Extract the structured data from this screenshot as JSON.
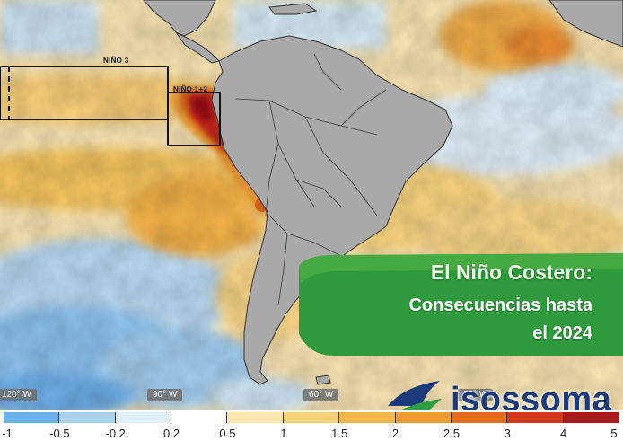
{
  "map": {
    "regions": [
      {
        "label": "NIÑO 3"
      },
      {
        "label": "NIÑO 1+2"
      }
    ],
    "longitude_labels": [
      "120° W",
      "90° W",
      "60° W",
      "30° W"
    ],
    "colors": {
      "land": "#a9a9a9",
      "coast": "#333333",
      "ocean_neutral": "#fdf3d7",
      "anomaly_scale": [
        "#3a8ee6",
        "#8ec5f2",
        "#cfe6f7",
        "#eef6fb",
        "#fdf1c9",
        "#fbd980",
        "#f7be4a",
        "#f0a030",
        "#e8701c",
        "#d33a1a",
        "#a8141a",
        "#6e0a10"
      ]
    }
  },
  "colorbar": {
    "ticks": [
      "-1",
      "-0.5",
      "-0.2",
      "0.2",
      "0.5",
      "1",
      "1.5",
      "2",
      "2.5",
      "3",
      "4",
      "5"
    ],
    "segment_colors": [
      "#6cb0ec",
      "#a8d2f4",
      "#e2f0f9",
      "#ffffff",
      "#fde9b0",
      "#fbd27a",
      "#f7b54a",
      "#f29a32",
      "#e56c1e",
      "#d1391a",
      "#a91a18"
    ]
  },
  "headline": {
    "line1": "El Niño Costero:",
    "line2": "Consecuencias hasta",
    "line3": "el 2024",
    "banner_color": "#2e9a3c"
  },
  "brand": {
    "name": "isossoma",
    "logo_icon": "wave-leaf-icon",
    "colors": {
      "blue": "#1b3a7a",
      "green": "#2ea043",
      "yellow": "#f2c400"
    }
  }
}
